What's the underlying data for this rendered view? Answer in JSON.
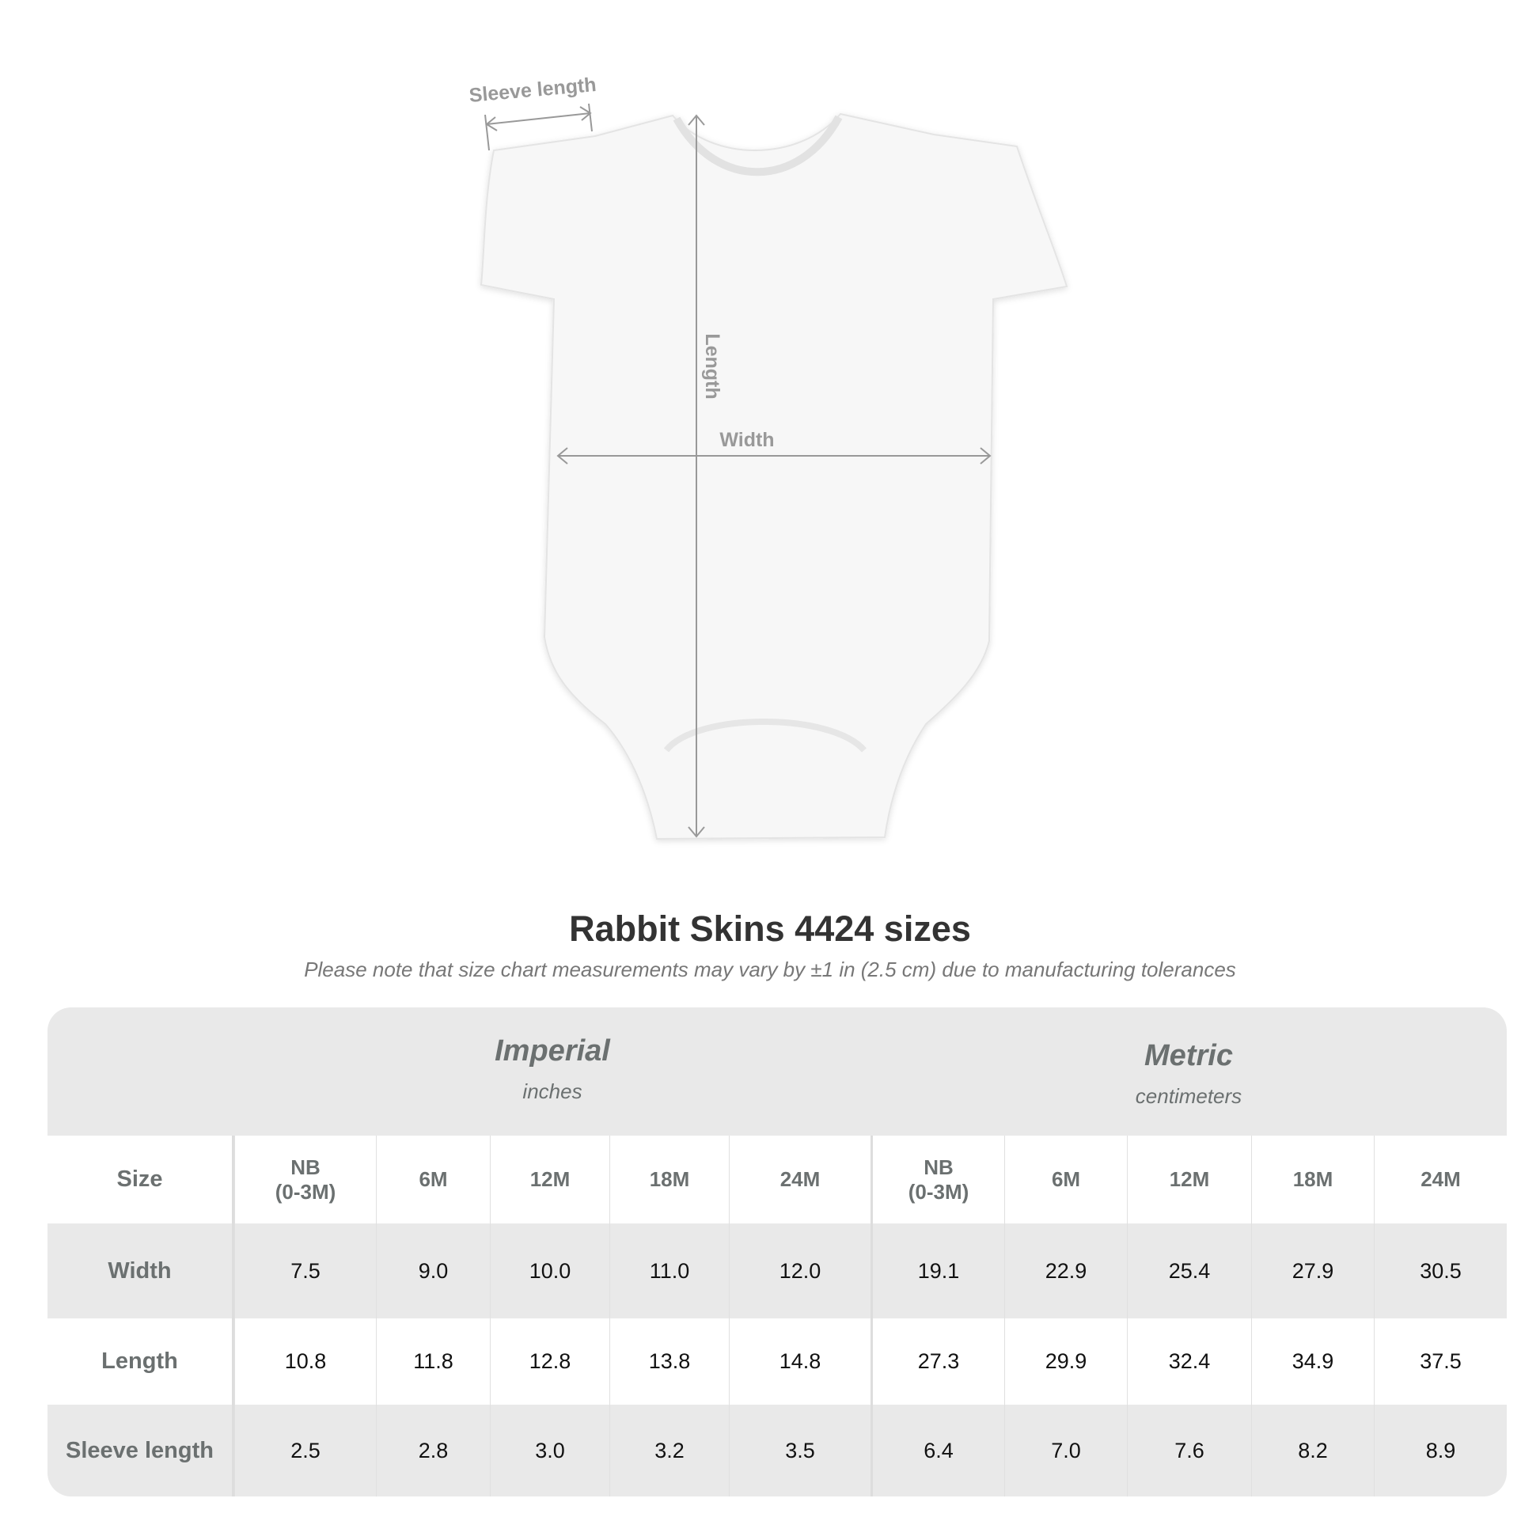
{
  "diagram": {
    "sleeve_label": "Sleeve length",
    "length_label": "Length",
    "width_label": "Width"
  },
  "title": "Rabbit Skins 4424 sizes",
  "subtitle": "Please note that size chart measurements may vary by ±1 in (2.5 cm) due to manufacturing tolerances",
  "table": {
    "imperial": {
      "title": "Imperial",
      "unit": "inches"
    },
    "metric": {
      "title": "Metric",
      "unit": "centimeters"
    },
    "header": [
      "Size",
      "NB\n(0-3M)",
      "6M",
      "12M",
      "18M",
      "24M",
      "NB\n(0-3M)",
      "6M",
      "12M",
      "18M",
      "24M"
    ],
    "rows": [
      {
        "label": "Width",
        "values": [
          "7.5",
          "9.0",
          "10.0",
          "11.0",
          "12.0",
          "19.1",
          "22.9",
          "25.4",
          "27.9",
          "30.5"
        ]
      },
      {
        "label": "Length",
        "values": [
          "10.8",
          "11.8",
          "12.8",
          "13.8",
          "14.8",
          "27.3",
          "29.9",
          "32.4",
          "34.9",
          "37.5"
        ]
      },
      {
        "label": "Sleeve length",
        "values": [
          "2.5",
          "2.8",
          "3.0",
          "3.2",
          "3.5",
          "6.4",
          "7.0",
          "7.6",
          "8.2",
          "8.9"
        ]
      }
    ]
  },
  "colors": {
    "band": "#e9e9e9",
    "label": "#6b7070",
    "arrow": "#999999"
  }
}
